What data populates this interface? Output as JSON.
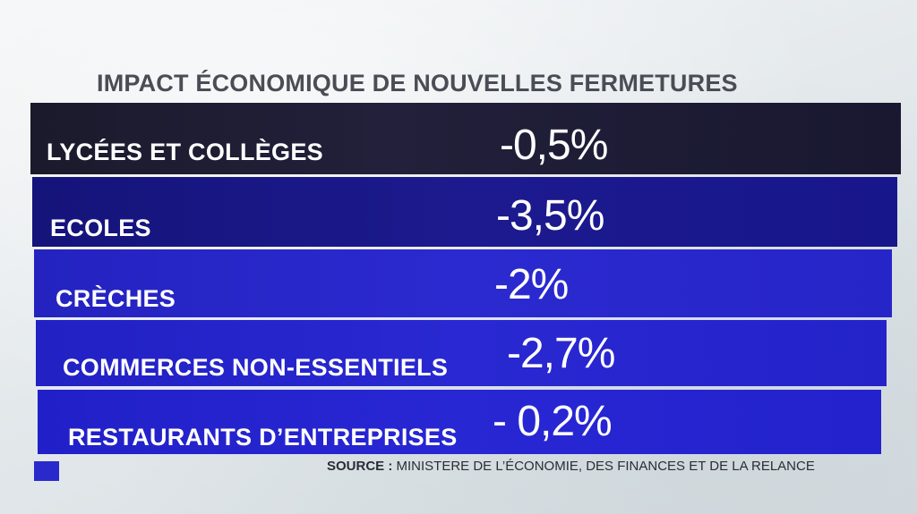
{
  "title": "IMPACT ÉCONOMIQUE DE NOUVELLES FERMETURES",
  "rows": [
    {
      "label": "LYCÉES ET COLLÈGES",
      "value": "-0,5%"
    },
    {
      "label": "ECOLES",
      "value": "-3,5%"
    },
    {
      "label": "CRÈCHES",
      "value": "-2%"
    },
    {
      "label": "COMMERCES NON-ESSENTIELS",
      "value": "-2,7%"
    },
    {
      "label": "RESTAURANTS D’ENTREPRISES",
      "value": "- 0,2%"
    }
  ],
  "source": {
    "key": "SOURCE :",
    "text": " MINISTERE DE L’ÉCONOMIE, DES FINANCES ET DE LA RELANCE"
  },
  "colors": {
    "title": "#4a4d55",
    "row_dark": "#1b1a2c",
    "row_navy": "#1c1a8e",
    "row_blue": "#2928d2",
    "accent": "#2a29cc"
  }
}
